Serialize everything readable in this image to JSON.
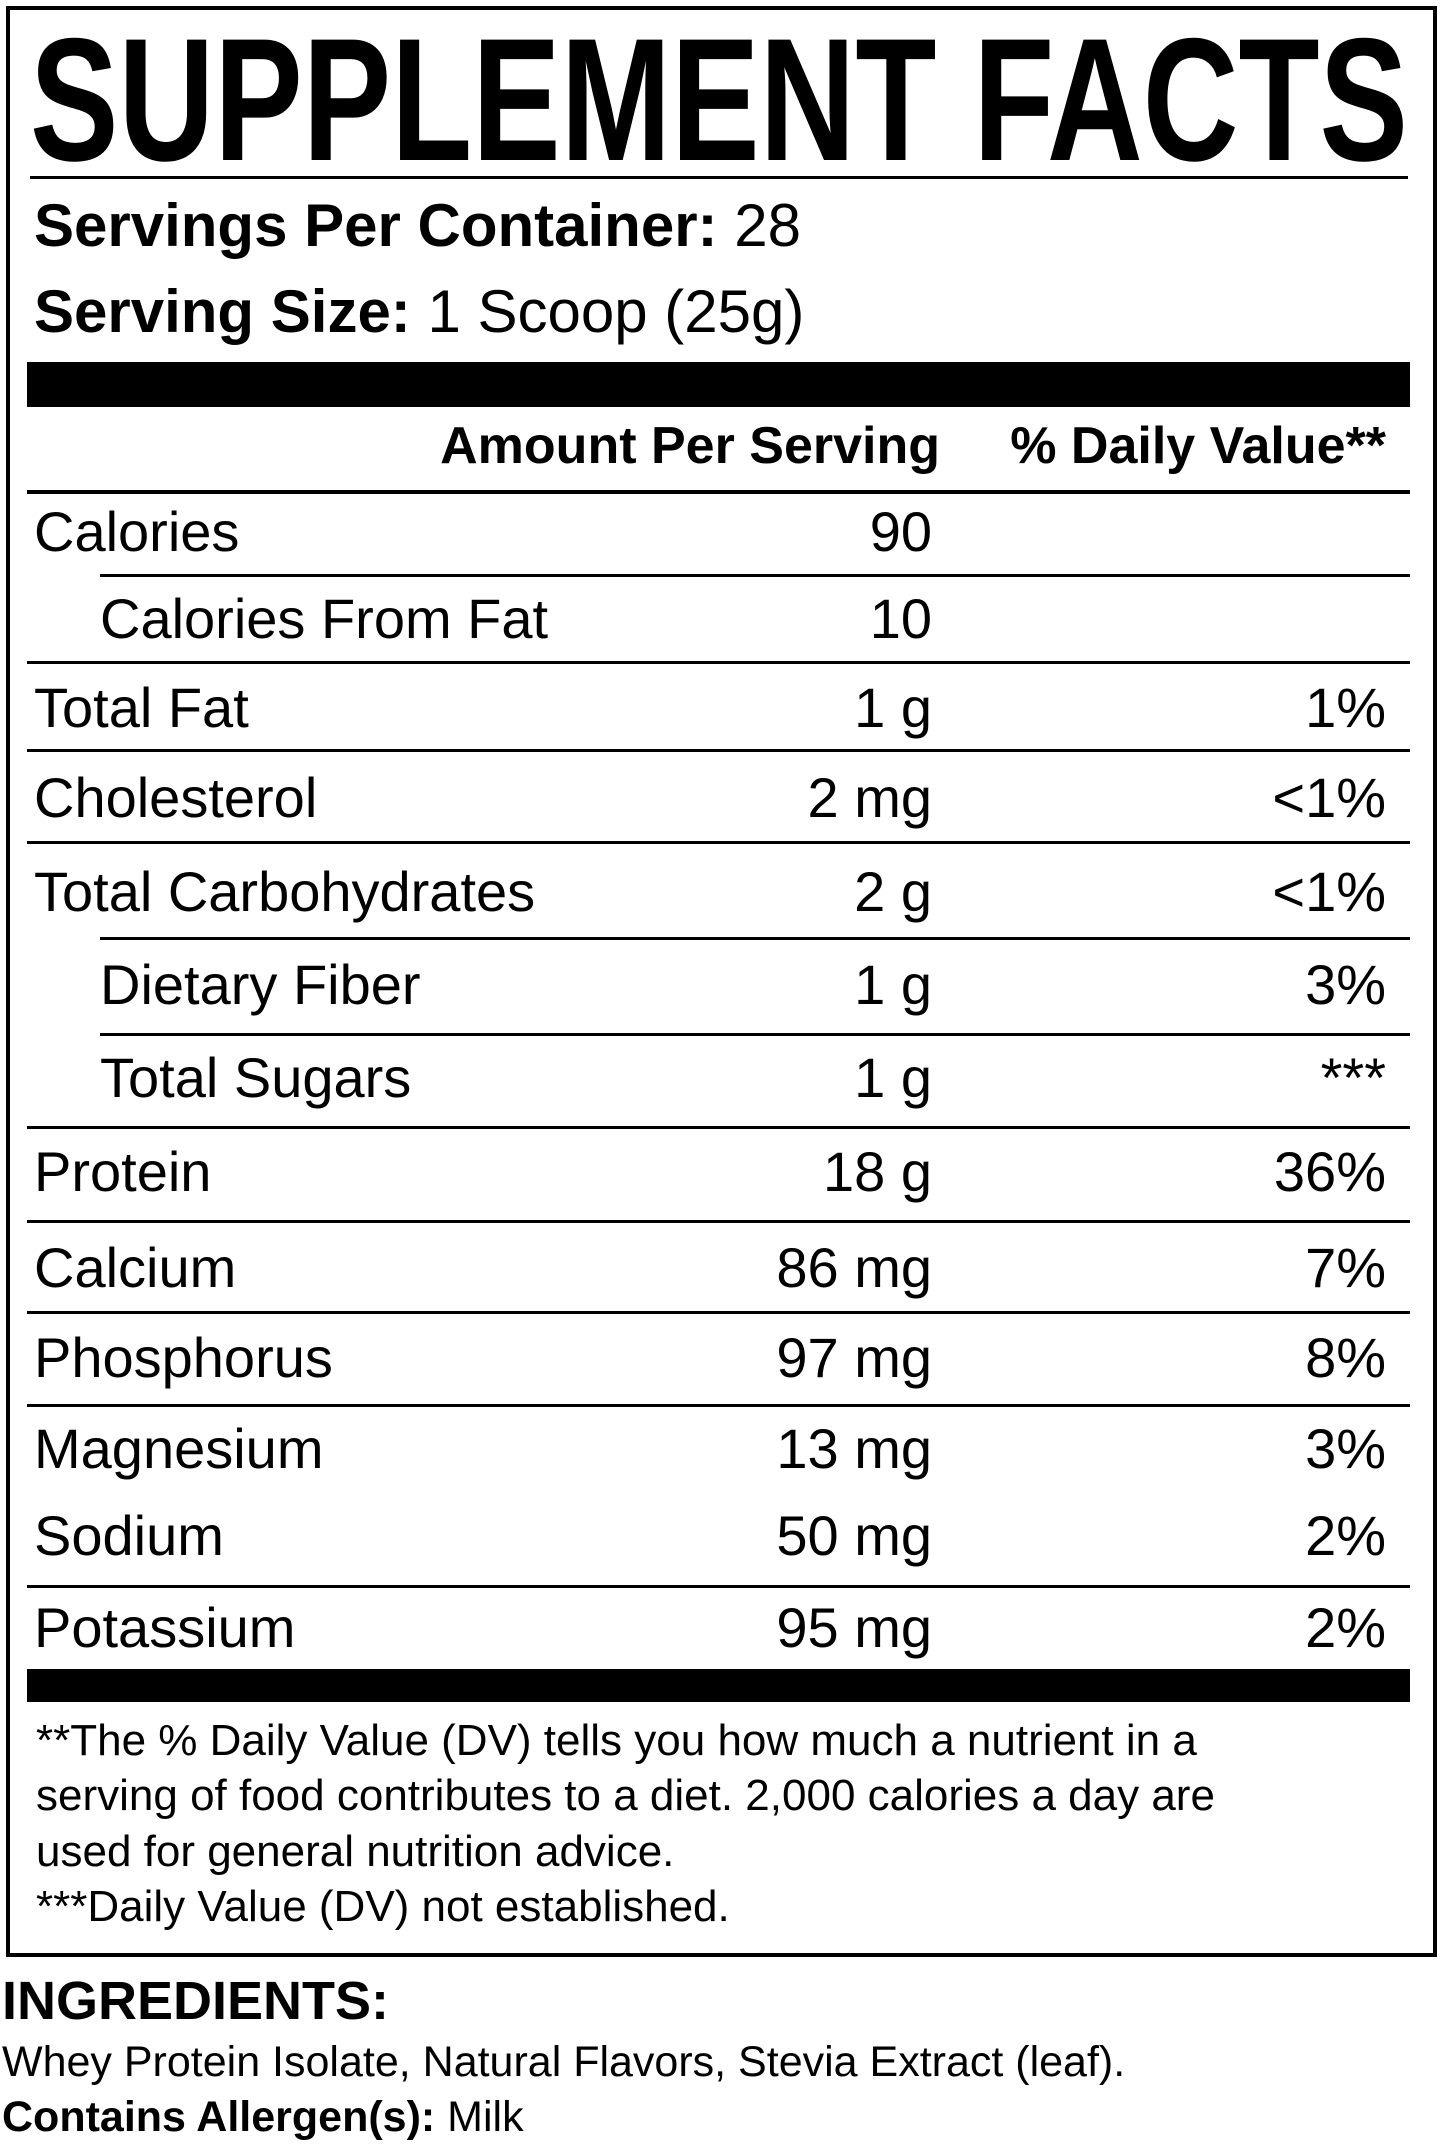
{
  "title": "SUPPLEMENT FACTS",
  "servings_per_container": {
    "label": "Servings Per Container:",
    "value": "28"
  },
  "serving_size": {
    "label": "Serving Size:",
    "value": "1 Scoop (25g)"
  },
  "table": {
    "header": {
      "amount": "Amount Per Serving",
      "daily_value": "% Daily Value**"
    },
    "rows": [
      {
        "name": "Calories",
        "amount": "90"
      },
      {
        "name": "Calories From Fat",
        "amount": "10"
      },
      {
        "name": "Total Fat",
        "amount": "1 g",
        "daily_value": "1%"
      },
      {
        "name": "Cholesterol",
        "amount": "2 mg",
        "daily_value": "<1%"
      },
      {
        "name": "Total Carbohydrates",
        "amount": "2 g",
        "daily_value": "<1%"
      },
      {
        "name": "Dietary Fiber",
        "amount": "1 g",
        "daily_value": "3%"
      },
      {
        "name": "Total Sugars",
        "amount": "1 g",
        "daily_value": "***"
      },
      {
        "name": "Protein",
        "amount": "18 g",
        "daily_value": "36%"
      },
      {
        "name": "Calcium",
        "amount": "86 mg",
        "daily_value": "7%"
      },
      {
        "name": "Phosphorus",
        "amount": "97 mg",
        "daily_value": "8%"
      },
      {
        "name": "Magnesium",
        "amount": "13 mg",
        "daily_value": "3%"
      },
      {
        "name": "Sodium",
        "amount": "50 mg",
        "daily_value": "2%"
      },
      {
        "name": "Potassium",
        "amount": "95 mg",
        "daily_value": "2%"
      }
    ]
  },
  "footnotes": [
    "**The % Daily Value (DV) tells you how much a nutrient in a",
    "serving of food contributes to a diet. 2,000 calories a day are",
    "used for general nutrition advice.",
    "***Daily Value (DV) not established."
  ],
  "ingredients": {
    "heading": "INGREDIENTS:",
    "text": "Whey Protein Isolate, Natural Flavors, Stevia Extract (leaf)."
  },
  "allergens": {
    "label": "Contains Allergen(s):",
    "value": "Milk"
  }
}
